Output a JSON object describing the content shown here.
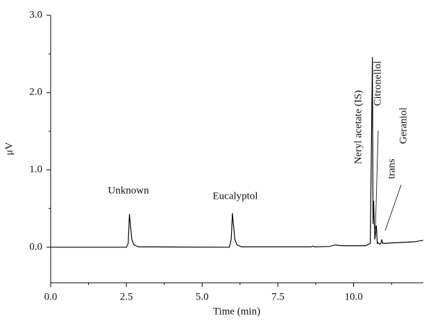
{
  "chart_data": {
    "type": "line",
    "x_label": "Time (min)",
    "y_label": "μV",
    "xlim": [
      0,
      12.3
    ],
    "ylim": [
      -0.46,
      3.0
    ],
    "xticks": [
      {
        "value": 0,
        "label": "0.0"
      },
      2.5,
      {
        "value": 5,
        "label": "5.0"
      },
      7.5,
      {
        "value": 10,
        "label": "10.0"
      }
    ],
    "yticks": [
      {
        "value": 0,
        "label": "0.0"
      },
      {
        "value": 1,
        "label": "1.0"
      },
      {
        "value": 2,
        "label": "2.0"
      },
      {
        "value": 3,
        "label": "3.0"
      }
    ],
    "annotations": [
      "Unknown",
      "Eucalyptol",
      "Neryl acetate (IS)",
      "Citronellol",
      "trans",
      "Geraniol"
    ],
    "series": [
      {
        "color": "#000000",
        "x": [
          0,
          2.5,
          2.56,
          2.6,
          2.63,
          2.68,
          2.75,
          2.9,
          5.9,
          5.96,
          6.0,
          6.03,
          6.08,
          6.15,
          6.3,
          8.6,
          8.65,
          8.7,
          9.2,
          9.4,
          9.6,
          10.4,
          10.55,
          10.6,
          10.62,
          10.64,
          10.66,
          10.7,
          10.75,
          10.78,
          10.8,
          10.85,
          10.9,
          10.93,
          10.96,
          11.0,
          11.5,
          12.0,
          12.3
        ],
        "values": [
          0,
          0,
          0.05,
          0.43,
          0.3,
          0.1,
          0.03,
          0.005,
          0,
          0.1,
          0.44,
          0.3,
          0.1,
          0.03,
          0.005,
          0.005,
          0.015,
          0.005,
          0.01,
          0.03,
          0.02,
          0.02,
          0.05,
          1.75,
          2.46,
          0.3,
          0.6,
          0.1,
          0.28,
          0.05,
          0.06,
          0.04,
          0.05,
          0.1,
          0.05,
          0.05,
          0.06,
          0.07,
          0.09
        ]
      }
    ]
  }
}
